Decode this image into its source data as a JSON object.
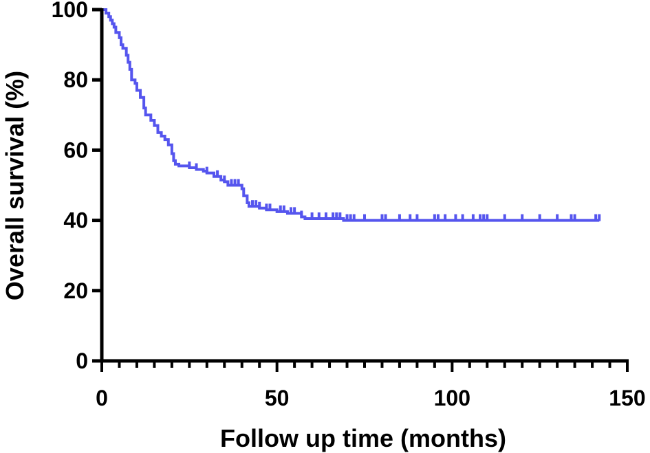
{
  "chart_data": {
    "type": "line",
    "title": "",
    "xlabel": "Follow up time (months)",
    "ylabel": "Overall survival (%)",
    "xlim": [
      0,
      150
    ],
    "ylim": [
      0,
      100
    ],
    "x_major_ticks": [
      0,
      50,
      100,
      150
    ],
    "x_minor_tick_step": 5,
    "y_major_ticks": [
      0,
      20,
      40,
      60,
      80,
      100
    ],
    "x_tick_labels": [
      "0",
      "50",
      "100",
      "150"
    ],
    "y_tick_labels": [
      "0",
      "20",
      "40",
      "60",
      "80",
      "100"
    ],
    "grid": false,
    "legend": "none",
    "series": [
      {
        "color": "#5555ee",
        "step": true,
        "points": [
          [
            0,
            100
          ],
          [
            1.2,
            99
          ],
          [
            2,
            98
          ],
          [
            2.5,
            97
          ],
          [
            3,
            96
          ],
          [
            3.5,
            95
          ],
          [
            4,
            93.5
          ],
          [
            5,
            92
          ],
          [
            5.5,
            90
          ],
          [
            6,
            89
          ],
          [
            7,
            87
          ],
          [
            7.5,
            85
          ],
          [
            8,
            83
          ],
          [
            8.5,
            80
          ],
          [
            9.5,
            79
          ],
          [
            10,
            77
          ],
          [
            11,
            75
          ],
          [
            12,
            72
          ],
          [
            12.5,
            70
          ],
          [
            14,
            68.5
          ],
          [
            15,
            67
          ],
          [
            16,
            65
          ],
          [
            17,
            64
          ],
          [
            18,
            63
          ],
          [
            19,
            61.5
          ],
          [
            20,
            59
          ],
          [
            20.5,
            57
          ],
          [
            21,
            56
          ],
          [
            22,
            55.5
          ],
          [
            25,
            55
          ],
          [
            27,
            54.5
          ],
          [
            29,
            54
          ],
          [
            30,
            53.5
          ],
          [
            32,
            52.5
          ],
          [
            34,
            51.5
          ],
          [
            35,
            51
          ],
          [
            36,
            50
          ],
          [
            40,
            49
          ],
          [
            40.5,
            47
          ],
          [
            41.5,
            45
          ],
          [
            42,
            44
          ],
          [
            45,
            43.5
          ],
          [
            47,
            43
          ],
          [
            50,
            42.5
          ],
          [
            53,
            42
          ],
          [
            57,
            41
          ],
          [
            58,
            40.5
          ],
          [
            69,
            40
          ],
          [
            142,
            40
          ]
        ],
        "censor_times": [
          25,
          27,
          30,
          33,
          35,
          37,
          38,
          39,
          43,
          44,
          45,
          47,
          48,
          51,
          52,
          54,
          55,
          57,
          60,
          62,
          64,
          66,
          67,
          68,
          70,
          71,
          72,
          75,
          80,
          81,
          85,
          88,
          90,
          95,
          96,
          98,
          101,
          103,
          106,
          108,
          109,
          110,
          115,
          120,
          125,
          130,
          134,
          135,
          141,
          142
        ]
      }
    ]
  }
}
